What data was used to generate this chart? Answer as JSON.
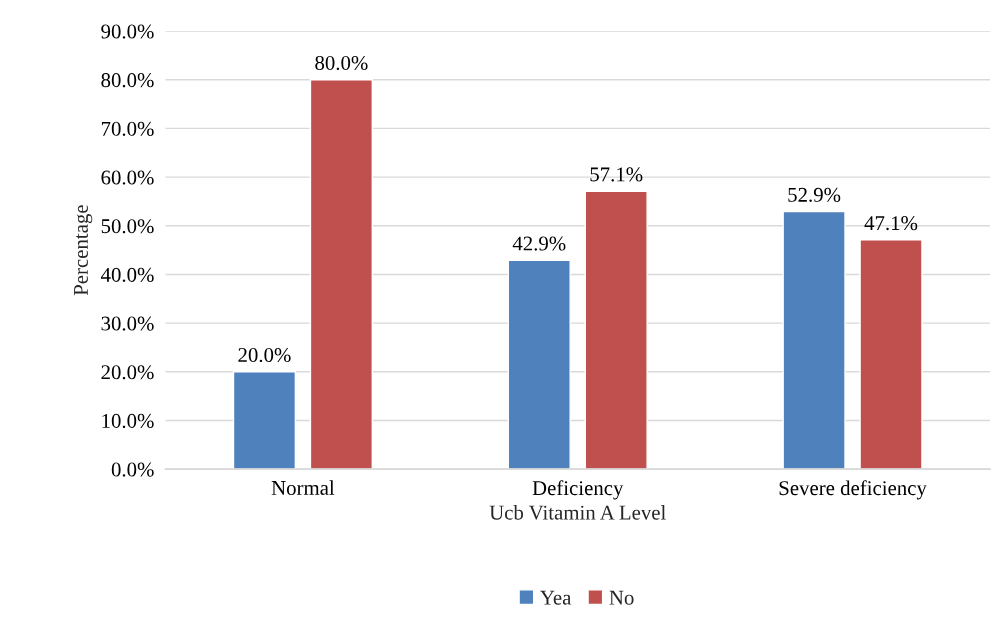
{
  "chart_data": {
    "type": "bar",
    "xlabel": "Ucb Vitamin A Level",
    "ylabel": "Percentage",
    "categories": [
      "Normal",
      "Deficiency",
      "Severe deficiency"
    ],
    "series": [
      {
        "name": "Yea",
        "color": "#4f81bd",
        "values": [
          20.0,
          42.9,
          52.9
        ],
        "value_labels": [
          "20.0%",
          "42.9%",
          "52.9%"
        ]
      },
      {
        "name": "No",
        "color": "#c0504d",
        "values": [
          80.0,
          57.1,
          47.1
        ],
        "value_labels": [
          "80.0%",
          "57.1%",
          "47.1%"
        ]
      }
    ],
    "ylim": [
      0,
      90
    ],
    "yticks": [
      {
        "value": 0,
        "label": "0.0%"
      },
      {
        "value": 10,
        "label": "10.0%"
      },
      {
        "value": 20,
        "label": "20.0%"
      },
      {
        "value": 30,
        "label": "30.0%"
      },
      {
        "value": 40,
        "label": "40.0%"
      },
      {
        "value": 50,
        "label": "50.0%"
      },
      {
        "value": 60,
        "label": "60.0%"
      },
      {
        "value": 70,
        "label": "70.0%"
      },
      {
        "value": 80,
        "label": "80.0%"
      },
      {
        "value": 90,
        "label": "90.0%"
      }
    ],
    "grid": "y",
    "legend": "bottom"
  }
}
